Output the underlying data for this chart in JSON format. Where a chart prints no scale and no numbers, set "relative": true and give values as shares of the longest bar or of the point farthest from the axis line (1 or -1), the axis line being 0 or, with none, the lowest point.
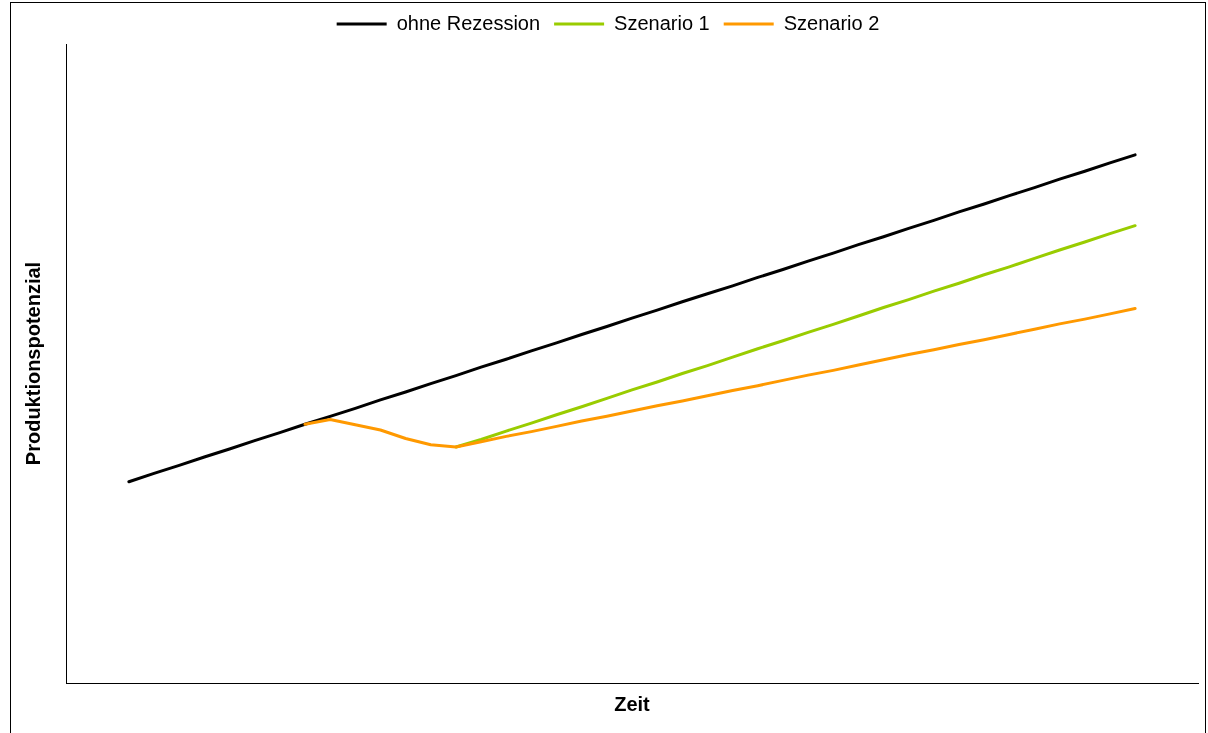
{
  "chart_data": {
    "type": "line",
    "relative": true,
    "xlabel": "Zeit",
    "ylabel": "Produktionspotenzial",
    "legend": "top",
    "grid": false,
    "marker": "none",
    "line_style": "solid",
    "categories": [
      null,
      null,
      null,
      null,
      null,
      null,
      null,
      null,
      null,
      null,
      null,
      null,
      null,
      null,
      null,
      null,
      null,
      null,
      null,
      null,
      null,
      null,
      null,
      null,
      null,
      null,
      null,
      null,
      null,
      null,
      null,
      null,
      null,
      null,
      null,
      null,
      null,
      null,
      null,
      null,
      null
    ],
    "series": [
      {
        "name": "ohne Rezession",
        "color": "#000000",
        "values": [
          0.381,
          0.397,
          0.412,
          0.428,
          0.443,
          0.459,
          0.474,
          0.49,
          0.505,
          0.52,
          0.536,
          0.551,
          0.567,
          0.582,
          0.598,
          0.613,
          0.629,
          0.644,
          0.66,
          0.675,
          0.691,
          0.706,
          0.722,
          0.737,
          0.752,
          0.768,
          0.783,
          0.799,
          0.814,
          0.83,
          0.845,
          0.861,
          0.876,
          0.892,
          0.907,
          0.923,
          0.938,
          0.954,
          0.969,
          0.985,
          1
        ]
      },
      {
        "name": "Szenario 1",
        "color": "#99cc00",
        "values": [
          null,
          null,
          null,
          null,
          null,
          null,
          null,
          null,
          null,
          null,
          null,
          null,
          null,
          0.447,
          0.461,
          0.477,
          0.492,
          0.508,
          0.523,
          0.539,
          0.555,
          0.57,
          0.586,
          0.601,
          0.617,
          0.633,
          0.648,
          0.664,
          0.679,
          0.695,
          0.711,
          0.726,
          0.742,
          0.757,
          0.773,
          0.788,
          0.804,
          0.82,
          0.835,
          0.851,
          0.866
        ]
      },
      {
        "name": "Szenario 2",
        "color": "#ff9900",
        "values": [
          null,
          null,
          null,
          null,
          null,
          null,
          null,
          0.49,
          0.499,
          0.489,
          0.479,
          0.463,
          0.451,
          0.447,
          0.457,
          0.467,
          0.476,
          0.486,
          0.496,
          0.505,
          0.515,
          0.525,
          0.534,
          0.544,
          0.554,
          0.563,
          0.573,
          0.583,
          0.592,
          0.602,
          0.612,
          0.622,
          0.631,
          0.641,
          0.65,
          0.66,
          0.67,
          0.68,
          0.689,
          0.699,
          0.709
        ]
      }
    ]
  }
}
